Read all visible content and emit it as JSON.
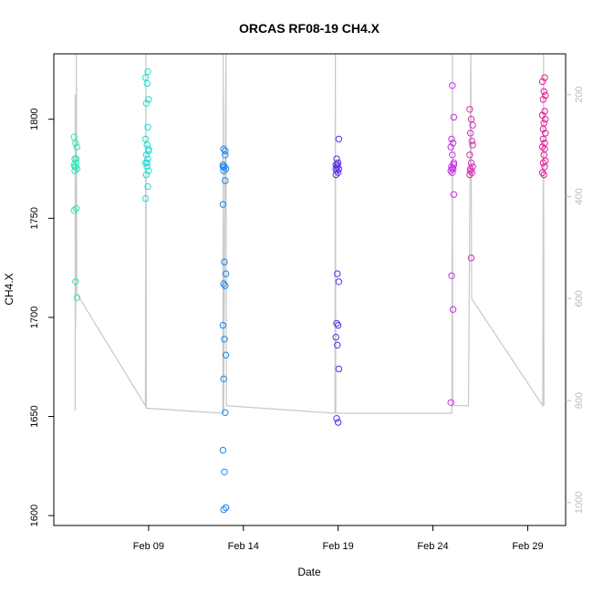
{
  "chart_data": {
    "type": "scatter",
    "title": "ORCAS RF08-19 CH4.X",
    "xlabel": "Date",
    "ylabel": "CH4.X",
    "xlim": [
      "2016-02-04",
      "2016-03-02"
    ],
    "ylim": [
      1595,
      1833
    ],
    "y2lim": [
      1045,
      120
    ],
    "x_ticks": [
      {
        "date": "2016-02-09",
        "label": "Feb 09"
      },
      {
        "date": "2016-02-14",
        "label": "Feb 14"
      },
      {
        "date": "2016-02-19",
        "label": "Feb 19"
      },
      {
        "date": "2016-02-24",
        "label": "Feb 24"
      },
      {
        "date": "2016-02-29",
        "label": "Feb 29"
      }
    ],
    "y_ticks": [
      1600,
      1650,
      1700,
      1750,
      1800
    ],
    "y2_ticks": [
      200,
      400,
      600,
      800,
      1000
    ],
    "grid": false,
    "legend": "none",
    "pressure_line_color": "#c8c8c8",
    "pressure_trace": [
      {
        "x": "2016-02-05T03:00",
        "y": 820
      },
      {
        "x": "2016-02-05T03:00",
        "y": 200
      },
      {
        "x": "2016-02-05T03:00",
        "y": 690
      },
      {
        "x": "2016-02-05T04:00",
        "y": 590
      },
      {
        "x": "2016-02-05T04:30",
        "y": 120
      },
      {
        "x": "2016-02-05T05:00",
        "y": 590
      },
      {
        "x": "2016-02-08T20:00",
        "y": 810
      },
      {
        "x": "2016-02-08T20:30",
        "y": 120
      },
      {
        "x": "2016-02-08T21:00",
        "y": 815
      },
      {
        "x": "2016-02-12T22:00",
        "y": 825
      },
      {
        "x": "2016-02-12T22:30",
        "y": 120
      },
      {
        "x": "2016-02-12T23:00",
        "y": 825
      },
      {
        "x": "2016-02-13T02:00",
        "y": 120
      },
      {
        "x": "2016-02-13T02:30",
        "y": 810
      },
      {
        "x": "2016-02-18T20:00",
        "y": 825
      },
      {
        "x": "2016-02-18T20:30",
        "y": 120
      },
      {
        "x": "2016-02-18T21:00",
        "y": 825
      },
      {
        "x": "2016-02-25T00:00",
        "y": 825
      },
      {
        "x": "2016-02-25T00:30",
        "y": 120
      },
      {
        "x": "2016-02-25T01:00",
        "y": 810
      },
      {
        "x": "2016-02-25T21:00",
        "y": 810
      },
      {
        "x": "2016-02-26T00:00",
        "y": 120
      },
      {
        "x": "2016-02-26T01:00",
        "y": 600
      },
      {
        "x": "2016-02-29T19:00",
        "y": 810
      },
      {
        "x": "2016-02-29T20:00",
        "y": 120
      },
      {
        "x": "2016-02-29T20:30",
        "y": 810
      }
    ],
    "series": [
      {
        "color": "#2ee6b8",
        "x": "2016-02-05T03:30",
        "y": [
          1791,
          1788,
          1786,
          1780,
          1778,
          1777,
          1776,
          1775,
          1774,
          1755,
          1754,
          1718,
          1710,
          1776,
          1780
        ]
      },
      {
        "color": "#22ddd8",
        "x": "2016-02-08T22:00",
        "y": [
          1824,
          1821,
          1818,
          1810,
          1808,
          1796,
          1790,
          1787,
          1785,
          1782,
          1780,
          1778,
          1776,
          1774,
          1772,
          1766,
          1760,
          1778,
          1784
        ]
      },
      {
        "color": "#1a86f0",
        "x": "2016-02-13T00:00",
        "y": [
          1785,
          1782,
          1777,
          1776,
          1775,
          1774,
          1769,
          1757,
          1728,
          1722,
          1717,
          1716,
          1696,
          1689,
          1681,
          1669,
          1652,
          1633,
          1622,
          1604,
          1603,
          1784,
          1776
        ]
      },
      {
        "color": "#5a2ee6",
        "x": "2016-02-18T23:00",
        "y": [
          1790,
          1780,
          1778,
          1777,
          1776,
          1775,
          1774,
          1773,
          1772,
          1722,
          1718,
          1697,
          1696,
          1690,
          1686,
          1674,
          1649,
          1647,
          1775,
          1777
        ]
      },
      {
        "color": "#c42ee6",
        "x": "2016-02-25T00:30",
        "y": [
          1817,
          1801,
          1790,
          1788,
          1786,
          1782,
          1778,
          1776,
          1775,
          1774,
          1773,
          1762,
          1721,
          1704,
          1657,
          1775,
          1777
        ]
      },
      {
        "color": "#d62eb8",
        "x": "2016-02-26T00:30",
        "y": [
          1805,
          1800,
          1797,
          1793,
          1789,
          1782,
          1778,
          1776,
          1774,
          1773,
          1772,
          1730,
          1787,
          1775
        ]
      },
      {
        "color": "#e61a98",
        "x": "2016-02-29T20:30",
        "y": [
          1821,
          1819,
          1814,
          1812,
          1810,
          1804,
          1802,
          1798,
          1793,
          1790,
          1788,
          1786,
          1782,
          1779,
          1778,
          1776,
          1773,
          1772,
          1800,
          1795,
          1785
        ]
      }
    ]
  }
}
